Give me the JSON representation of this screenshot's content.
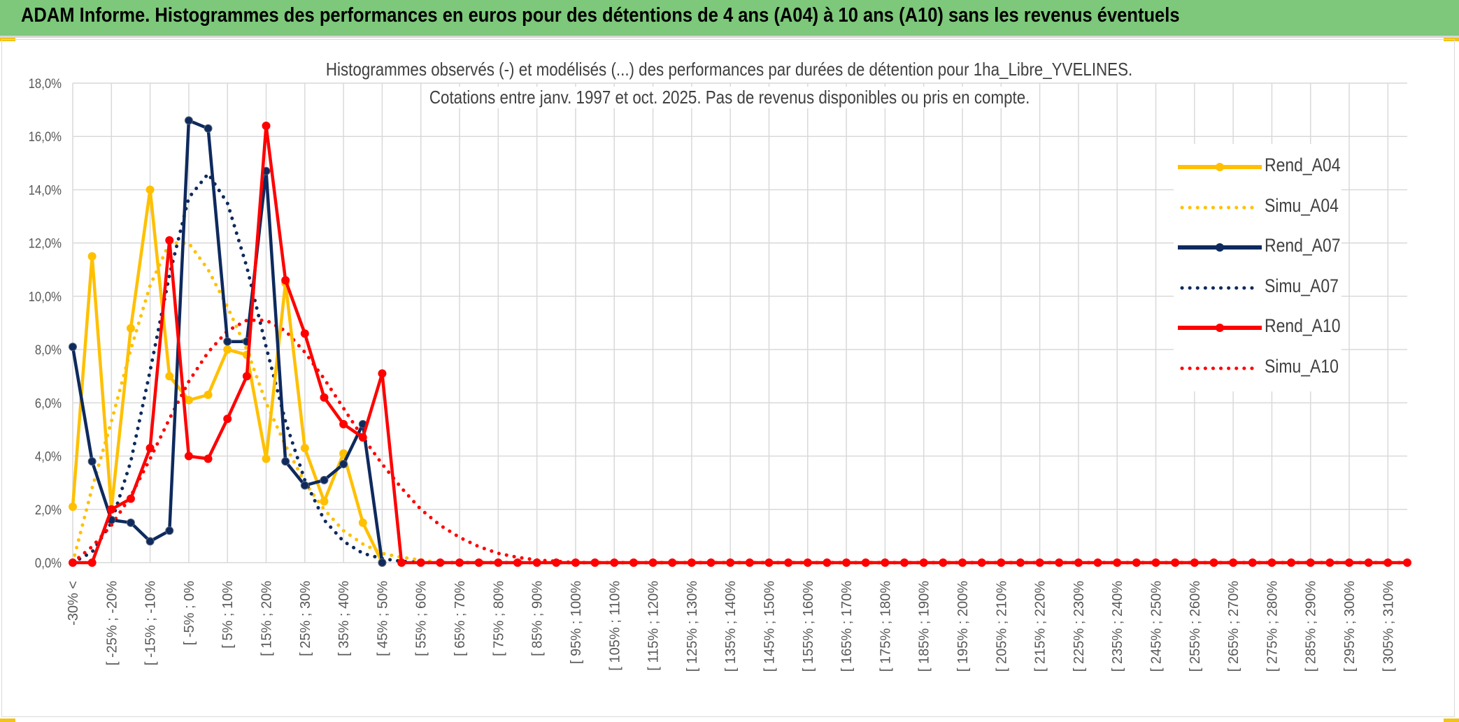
{
  "banner": {
    "title": "ADAM Informe. Histogrammes des performances en euros pour des détentions de 4 ans (A04) à 10 ans (A10) sans les revenus éventuels"
  },
  "colors": {
    "banner_bg": "#7dc87a",
    "corner_accent": "#f2c318",
    "A04": "#ffc000",
    "A07": "#0e2a5e",
    "A10": "#ff0000",
    "grid": "#d9d9d9",
    "text": "#595959"
  },
  "chart_data": {
    "type": "line",
    "title": "Histogrammes observés (-) et modélisés (...) des performances par durées de détention pour 1ha_Libre_YVELINES.",
    "subtitle": "Cotations entre janv. 1997 et oct. 2025. Pas de revenus disponibles ou pris en compte.",
    "xlabel": "",
    "ylabel": "",
    "ylim": [
      0,
      18
    ],
    "y_ticks": [
      "0,0%",
      "2,0%",
      "4,0%",
      "6,0%",
      "8,0%",
      "10,0%",
      "12,0%",
      "14,0%",
      "16,0%",
      "18,0%"
    ],
    "y_unit": "%",
    "grid": true,
    "legend_position": "right",
    "x_labels": [
      "-30% <",
      "[ -25% ; -20%",
      "[ -15% ; -10%",
      "[ -5% ; 0%",
      "[ 5% ; 10%",
      "[ 15% ; 20%",
      "[ 25% ; 30%",
      "[ 35% ; 40%",
      "[ 45% ; 50%",
      "[ 55% ; 60%",
      "[ 65% ; 70%",
      "[ 75% ; 80%",
      "[ 85% ; 90%",
      "[ 95% ; 100%",
      "[ 105% ; 110%",
      "[ 115% ; 120%",
      "[ 125% ; 130%",
      "[ 135% ; 140%",
      "[ 145% ; 150%",
      "[ 155% ; 160%",
      "[ 165% ; 170%",
      "[ 175% ; 180%",
      "[ 185% ; 190%",
      "[ 195% ; 200%",
      "[ 205% ; 210%",
      "[ 215% ; 220%",
      "[ 225% ; 230%",
      "[ 235% ; 240%",
      "[ 245% ; 250%",
      "[ 255% ; 260%",
      "[ 265% ; 270%",
      "[ 275% ; 280%",
      "[ 285% ; 290%",
      "[ 295% ; 300%",
      "[ 305% ; 310%"
    ],
    "x_label_every": 2,
    "n_categories": 70,
    "series": [
      {
        "name": "Rend_A04",
        "style": "solid",
        "color": "#ffc000",
        "values": [
          2.1,
          11.5,
          2.0,
          8.8,
          14.0,
          7.0,
          6.1,
          6.3,
          8.0,
          7.8,
          3.9,
          10.5,
          4.3,
          2.3,
          4.1,
          1.5,
          0.0
        ]
      },
      {
        "name": "Simu_A04",
        "style": "dotted",
        "color": "#ffc000",
        "values": [
          0.0,
          2.8,
          5.3,
          8.0,
          10.4,
          12.0,
          12.0,
          11.0,
          9.6,
          8.0,
          6.0,
          4.4,
          3.0,
          2.0,
          1.2,
          0.7,
          0.35,
          0.2,
          0.1,
          0.0
        ]
      },
      {
        "name": "Rend_A07",
        "style": "solid",
        "color": "#0e2a5e",
        "values": [
          8.1,
          3.8,
          1.6,
          1.5,
          0.8,
          1.2,
          16.6,
          16.3,
          8.3,
          8.3,
          14.7,
          3.8,
          2.9,
          3.1,
          3.7,
          5.2,
          0.0
        ]
      },
      {
        "name": "Simu_A07",
        "style": "dotted",
        "color": "#0e2a5e",
        "values": [
          0.0,
          0.4,
          1.5,
          3.8,
          7.2,
          10.8,
          13.7,
          14.6,
          13.5,
          11.1,
          8.1,
          5.3,
          3.1,
          1.6,
          0.8,
          0.35,
          0.15,
          0.05,
          0.0
        ]
      },
      {
        "name": "Rend_A10",
        "style": "solid",
        "color": "#ff0000",
        "values": [
          0.0,
          0.0,
          2.0,
          2.4,
          4.3,
          12.1,
          4.0,
          3.9,
          5.4,
          7.0,
          16.4,
          10.6,
          8.6,
          6.2,
          5.2,
          4.7,
          7.1,
          0.0,
          0.0,
          0.0,
          0.0,
          0.0,
          0.0,
          0.0,
          0.0,
          0.0,
          0.0,
          0.0,
          0.0,
          0.0,
          0.0,
          0.0,
          0.0,
          0.0,
          0.0,
          0.0,
          0.0,
          0.0,
          0.0,
          0.0,
          0.0,
          0.0,
          0.0,
          0.0,
          0.0,
          0.0,
          0.0,
          0.0,
          0.0,
          0.0,
          0.0,
          0.0,
          0.0,
          0.0,
          0.0,
          0.0,
          0.0,
          0.0,
          0.0,
          0.0,
          0.0,
          0.0,
          0.0,
          0.0,
          0.0,
          0.0,
          0.0,
          0.0,
          0.0,
          0.0
        ]
      },
      {
        "name": "Simu_A10",
        "style": "dotted",
        "color": "#ff0000",
        "values": [
          0.0,
          0.6,
          1.4,
          2.5,
          3.9,
          5.4,
          6.8,
          7.9,
          8.7,
          9.1,
          9.1,
          8.7,
          7.9,
          6.9,
          5.8,
          4.7,
          3.7,
          2.8,
          2.0,
          1.4,
          0.95,
          0.6,
          0.35,
          0.2,
          0.1,
          0.05,
          0.0
        ]
      }
    ]
  }
}
